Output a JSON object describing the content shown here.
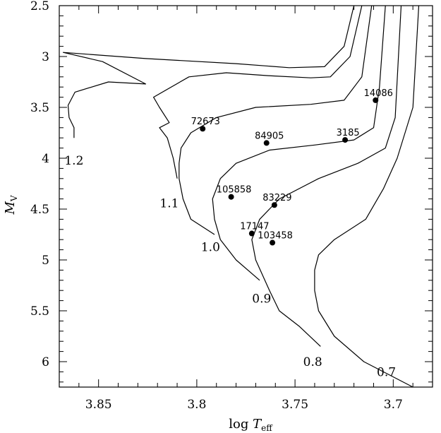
{
  "chart_data": {
    "type": "line",
    "title": "",
    "xlabel_main": "log ",
    "xlabel_var": "T",
    "xlabel_sub": "eff",
    "ylabel_var": "M",
    "ylabel_sub": "V",
    "xlim": [
      3.87,
      3.68
    ],
    "ylim": [
      6.25,
      2.5
    ],
    "x_reversed": true,
    "y_reversed": true,
    "x_ticks": [
      {
        "v": 3.85,
        "label": "3.85"
      },
      {
        "v": 3.8,
        "label": "3.8"
      },
      {
        "v": 3.75,
        "label": "3.75"
      },
      {
        "v": 3.7,
        "label": "3.7"
      }
    ],
    "y_ticks": [
      {
        "v": 2.5,
        "label": "2.5"
      },
      {
        "v": 3.0,
        "label": "3"
      },
      {
        "v": 3.5,
        "label": "3.5"
      },
      {
        "v": 4.0,
        "label": "4"
      },
      {
        "v": 4.5,
        "label": "4.5"
      },
      {
        "v": 5.0,
        "label": "5"
      },
      {
        "v": 5.5,
        "label": "5.5"
      },
      {
        "v": 6.0,
        "label": "6"
      }
    ],
    "series": [
      {
        "name": "1.2",
        "label_at": [
          3.8625,
          4.02
        ],
        "points": [
          [
            3.8625,
            3.8
          ],
          [
            3.8625,
            3.7
          ],
          [
            3.865,
            3.6
          ],
          [
            3.8655,
            3.48
          ],
          [
            3.862,
            3.35
          ],
          [
            3.845,
            3.25
          ],
          [
            3.826,
            3.27
          ],
          [
            3.848,
            3.05
          ],
          [
            3.868,
            2.96
          ],
          [
            3.826,
            3.02
          ],
          [
            3.78,
            3.07
          ],
          [
            3.753,
            3.11
          ],
          [
            3.735,
            3.1
          ],
          [
            3.725,
            2.9
          ],
          [
            3.72,
            2.5
          ]
        ]
      },
      {
        "name": "1.1",
        "label_at": [
          3.814,
          4.44
        ],
        "points": [
          [
            3.81,
            4.2
          ],
          [
            3.812,
            4.0
          ],
          [
            3.815,
            3.8
          ],
          [
            3.819,
            3.7
          ],
          [
            3.814,
            3.65
          ],
          [
            3.819,
            3.5
          ],
          [
            3.822,
            3.4
          ],
          [
            3.804,
            3.2
          ],
          [
            3.785,
            3.16
          ],
          [
            3.762,
            3.19
          ],
          [
            3.742,
            3.21
          ],
          [
            3.732,
            3.2
          ],
          [
            3.722,
            3.0
          ],
          [
            3.716,
            2.5
          ]
        ]
      },
      {
        "name": "1.0",
        "label_at": [
          3.793,
          4.87
        ],
        "points": [
          [
            3.791,
            4.75
          ],
          [
            3.803,
            4.6
          ],
          [
            3.807,
            4.4
          ],
          [
            3.809,
            4.2
          ],
          [
            3.809,
            4.05
          ],
          [
            3.808,
            3.9
          ],
          [
            3.803,
            3.75
          ],
          [
            3.79,
            3.6
          ],
          [
            3.77,
            3.5
          ],
          [
            3.742,
            3.47
          ],
          [
            3.725,
            3.43
          ],
          [
            3.716,
            3.2
          ],
          [
            3.711,
            2.5
          ]
        ]
      },
      {
        "name": "0.9",
        "label_at": [
          3.767,
          5.38
        ],
        "points": [
          [
            3.768,
            5.2
          ],
          [
            3.78,
            5.0
          ],
          [
            3.788,
            4.8
          ],
          [
            3.791,
            4.6
          ],
          [
            3.792,
            4.4
          ],
          [
            3.788,
            4.2
          ],
          [
            3.78,
            4.05
          ],
          [
            3.763,
            3.92
          ],
          [
            3.74,
            3.87
          ],
          [
            3.72,
            3.82
          ],
          [
            3.71,
            3.7
          ],
          [
            3.707,
            3.3
          ],
          [
            3.704,
            2.5
          ]
        ]
      },
      {
        "name": "0.8",
        "label_at": [
          3.741,
          6.0
        ],
        "points": [
          [
            3.737,
            5.85
          ],
          [
            3.748,
            5.65
          ],
          [
            3.758,
            5.5
          ],
          [
            3.763,
            5.3
          ],
          [
            3.77,
            5.0
          ],
          [
            3.772,
            4.8
          ],
          [
            3.768,
            4.6
          ],
          [
            3.758,
            4.4
          ],
          [
            3.738,
            4.2
          ],
          [
            3.718,
            4.05
          ],
          [
            3.704,
            3.9
          ],
          [
            3.699,
            3.6
          ],
          [
            3.696,
            2.5
          ]
        ]
      },
      {
        "name": "0.7",
        "label_at": [
          3.7035,
          6.1
        ],
        "points": [
          [
            3.69,
            6.25
          ],
          [
            3.715,
            6.0
          ],
          [
            3.73,
            5.75
          ],
          [
            3.738,
            5.5
          ],
          [
            3.74,
            5.3
          ],
          [
            3.74,
            5.1
          ],
          [
            3.738,
            4.95
          ],
          [
            3.73,
            4.8
          ],
          [
            3.714,
            4.6
          ],
          [
            3.705,
            4.3
          ],
          [
            3.698,
            4.0
          ],
          [
            3.69,
            3.5
          ],
          [
            3.687,
            2.5
          ]
        ]
      }
    ],
    "stars": [
      {
        "name": "72673",
        "x": 3.797,
        "y": 3.71
      },
      {
        "name": "84905",
        "x": 3.7645,
        "y": 3.85
      },
      {
        "name": "3185",
        "x": 3.7245,
        "y": 3.82
      },
      {
        "name": "14086",
        "x": 3.709,
        "y": 3.43
      },
      {
        "name": "105858",
        "x": 3.7825,
        "y": 4.38
      },
      {
        "name": "83229",
        "x": 3.7605,
        "y": 4.46
      },
      {
        "name": "17147",
        "x": 3.772,
        "y": 4.74
      },
      {
        "name": "103458",
        "x": 3.7615,
        "y": 4.83
      }
    ]
  }
}
